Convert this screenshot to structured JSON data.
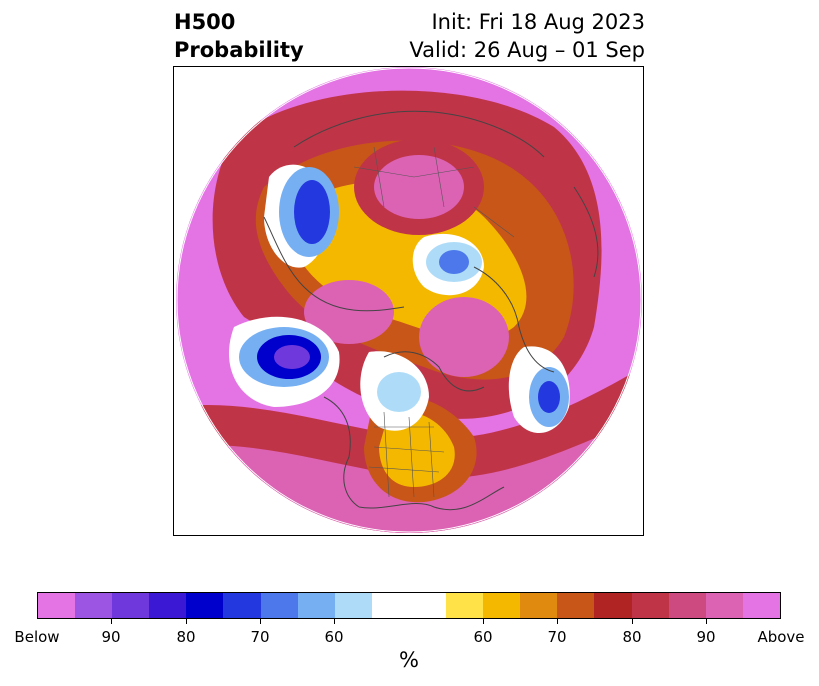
{
  "title": {
    "left_line1": "H500",
    "left_line2": "Probability",
    "right_line1": "Init: Fri 18 Aug 2023",
    "right_line2": "Valid: 26 Aug – 01 Sep"
  },
  "colorbar": {
    "unit": "%",
    "colors": [
      "#e473e4",
      "#9b55e2",
      "#6e38dc",
      "#3b18d4",
      "#0000cc",
      "#2438e0",
      "#4c78ec",
      "#76b0f2",
      "#aedcf8",
      "#ffffff",
      "#ffe148",
      "#f5b800",
      "#e08a10",
      "#c85618",
      "#b02424",
      "#c03448",
      "#cc4a80",
      "#dc62b4",
      "#e473e4"
    ],
    "labels": [
      "Below",
      "90",
      "80",
      "70",
      "60",
      "60",
      "70",
      "80",
      "90",
      "Above"
    ]
  },
  "map": {
    "projection": "north-polar-stereographic",
    "features": [
      "coastlines",
      "country-borders",
      "state-borders"
    ]
  }
}
